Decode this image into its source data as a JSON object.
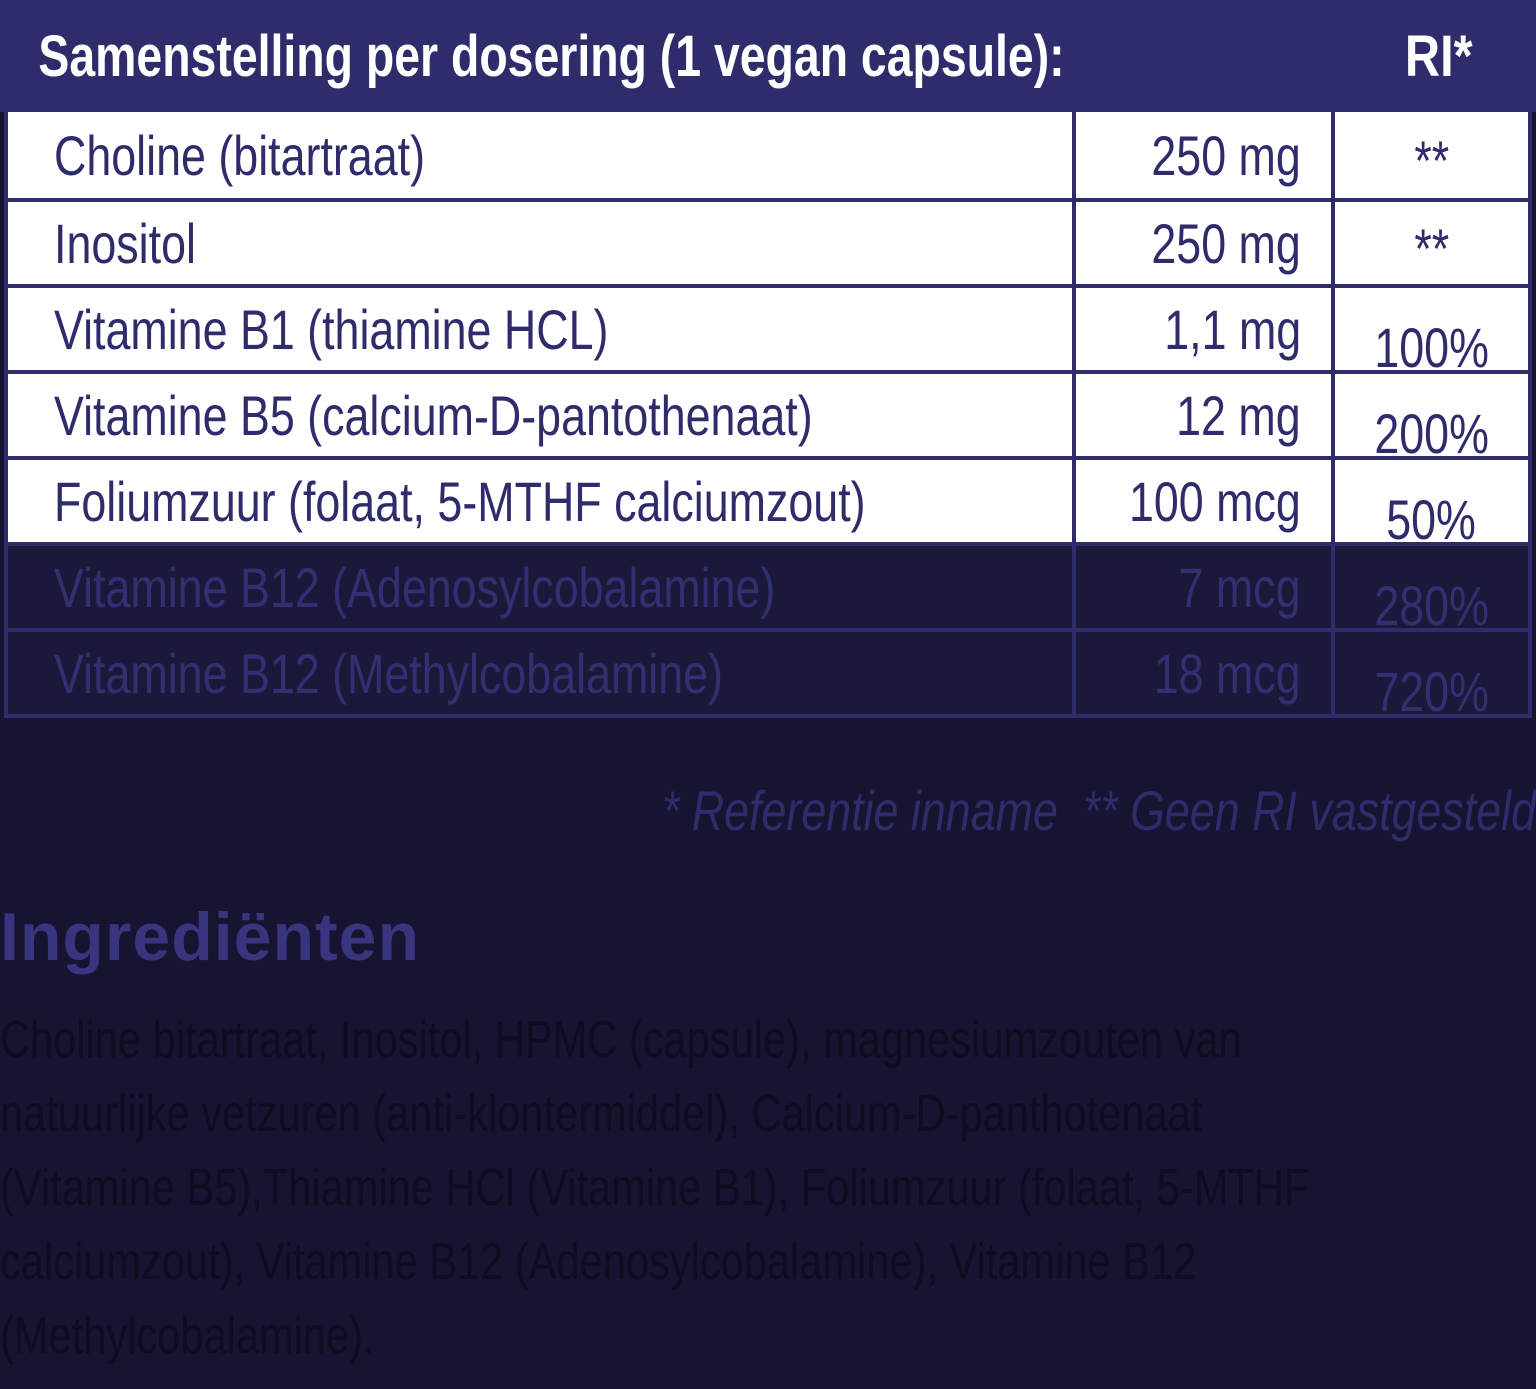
{
  "colors": {
    "header_bg": "#2e2c6b",
    "table_border": "#2e2c6b",
    "light_row_bg": "#ffffff",
    "light_row_text": "#2e2c6b",
    "dark_row_bg": "#1b1939",
    "dark_row_text": "#322f72",
    "page_bg": "#161430",
    "header_text": "#ffffff",
    "footnote_text": "#2e2c6b",
    "heading_text": "#38357e",
    "paragraph_text": "#0e0c1e"
  },
  "table": {
    "header": {
      "title": "Samenstelling per dosering (1 vegan capsule):",
      "ri_label": "RI*"
    },
    "rows": [
      {
        "name": "Choline (bitartraat)",
        "amount": "250 mg",
        "ri": "**",
        "theme": "light"
      },
      {
        "name": "Inositol",
        "amount": "250 mg",
        "ri": "**",
        "theme": "light"
      },
      {
        "name": "Vitamine B1 (thiamine HCL)",
        "amount": "1,1 mg",
        "ri": "100%",
        "theme": "light"
      },
      {
        "name": "Vitamine B5 (calcium-D-pantothenaat)",
        "amount": "12 mg",
        "ri": "200%",
        "theme": "light"
      },
      {
        "name": "Foliumzuur (folaat, 5-MTHF calciumzout)",
        "amount": "100 mcg",
        "ri": "50%",
        "theme": "light"
      },
      {
        "name": "Vitamine B12 (Adenosylcobalamine)",
        "amount": "7 mcg",
        "ri": "280%",
        "theme": "dark"
      },
      {
        "name": "Vitamine B12 (Methylcobalamine)",
        "amount": "18 mcg",
        "ri": "720%",
        "theme": "dark"
      }
    ]
  },
  "footnote": "* Referentie inname  ** Geen RI vastgesteld",
  "ingredients": {
    "heading": "Ingrediënten",
    "lines": [
      "Choline bitartraat, Inositol, HPMC (capsule), magnesiumzouten van",
      "natuurlijke vetzuren (anti-klontermiddel), Calcium-D-panthotenaat",
      "(Vitamine B5),Thiamine HCl (Vitamine B1), Foliumzuur (folaat, 5-MTHF",
      "calciumzout), Vitamine B12 (Adenosylcobalamine), Vitamine B12",
      "(Methylcobalamine)."
    ]
  }
}
